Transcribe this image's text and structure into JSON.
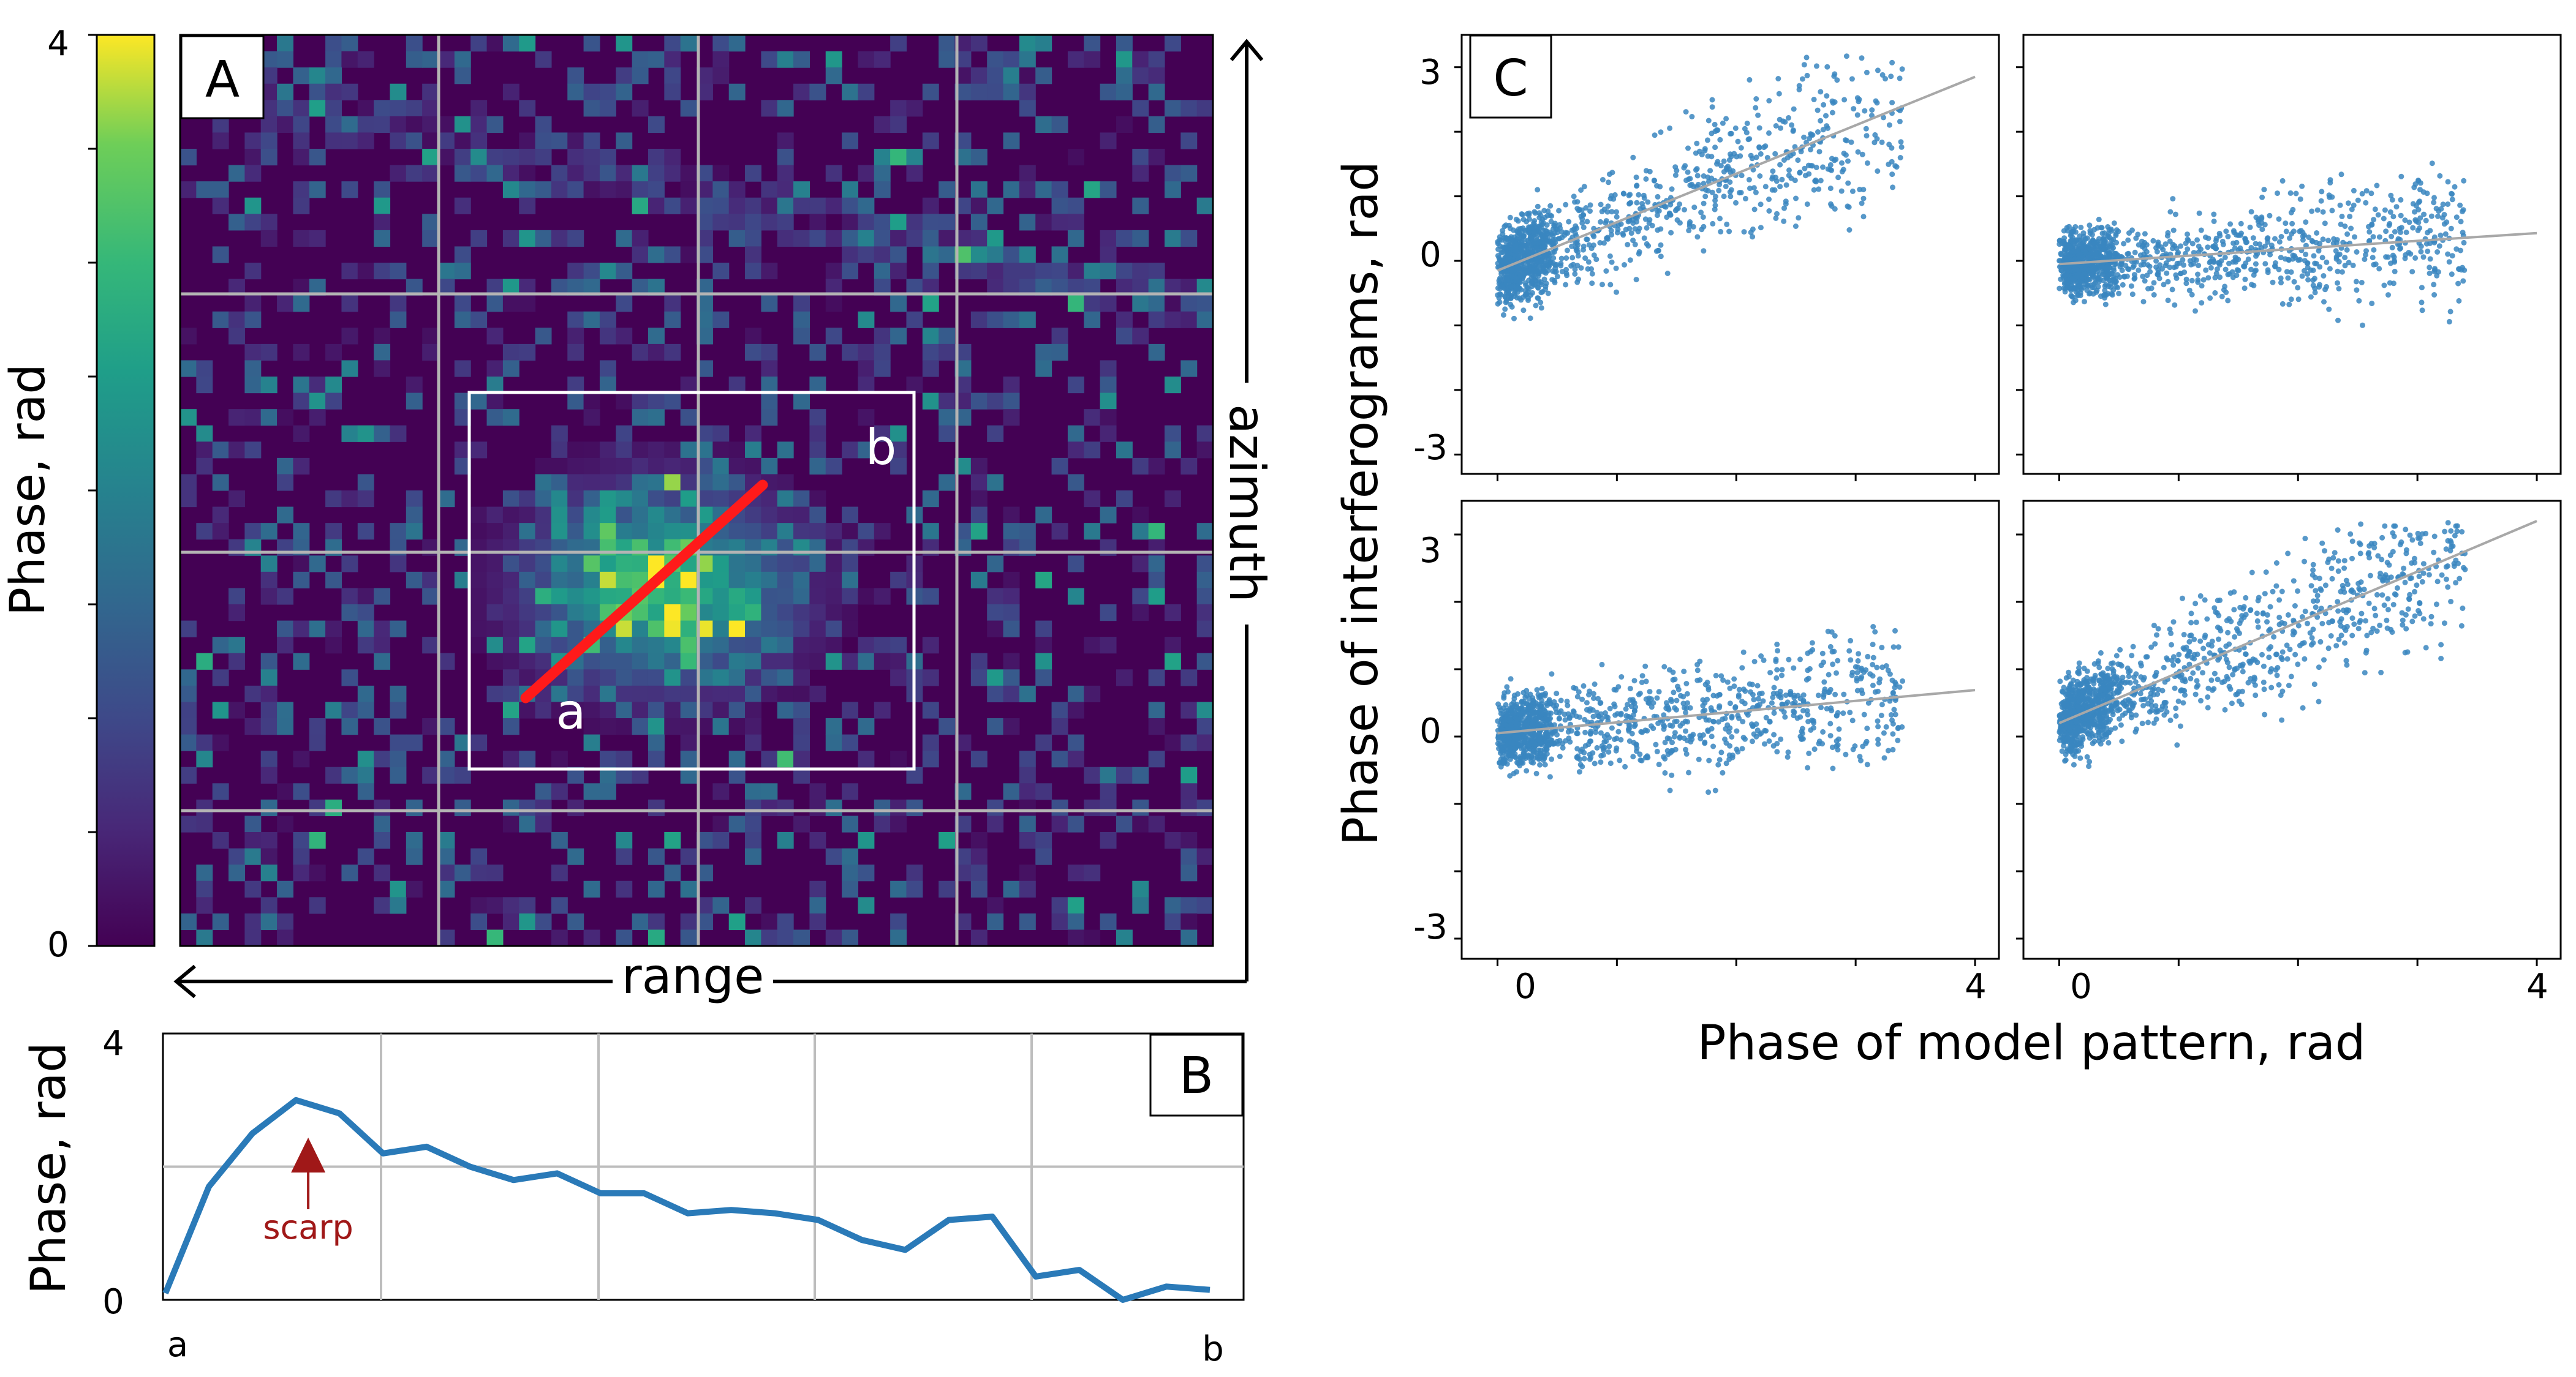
{
  "colors": {
    "scatter_point": "#3a86c0",
    "fit_line": "#a8a8a8",
    "profile_line": "#2a7ab8",
    "transect": "#ff1a1a",
    "scarp_marker": "#a01818",
    "grid_light": "#bdbdbd",
    "heatmap_grid": "#b4b4b4",
    "axis": "#000000"
  },
  "panel_a": {
    "letter": "A",
    "colorbar": {
      "label": "Phase, rad",
      "min_label": "0",
      "max_label": "4",
      "ticks": [
        0,
        0.5,
        1,
        1.5,
        2,
        2.5,
        3,
        3.5,
        4
      ]
    },
    "x_axis_label": "range",
    "y_axis_label": "azimuth",
    "transect_start_label": "a",
    "transect_end_label": "b"
  },
  "panel_b": {
    "letter": "B",
    "y_axis_label": "Phase, rad",
    "y_tick_labels": [
      "0",
      "4"
    ],
    "x_start_label": "a",
    "x_end_label": "b",
    "annotation": "scarp"
  },
  "panel_c": {
    "letter": "C",
    "y_axis_label": "Phase of interferograms, rad",
    "x_axis_label": "Phase of model pattern, rad",
    "y_tick_labels": [
      "3",
      "0",
      "-3"
    ],
    "x_tick_labels": [
      "0",
      "4"
    ]
  },
  "chart_data": [
    {
      "type": "heatmap",
      "panel": "A",
      "colorbar_label": "Phase, rad",
      "zlim": [
        0,
        4
      ],
      "colormap": "viridis",
      "xlabel": "range",
      "ylabel": "azimuth",
      "grid": true,
      "cols": 64,
      "rows": 56,
      "region_box_present": true,
      "transect": {
        "from": "a",
        "to": "b"
      }
    },
    {
      "type": "line",
      "panel": "B",
      "ylabel": "Phase, rad",
      "ylim": [
        0,
        4
      ],
      "x_start": "a",
      "x_end": "b",
      "grid": true,
      "x": [
        0,
        1,
        2,
        3,
        4,
        5,
        6,
        7,
        8,
        9,
        10,
        11,
        12,
        13,
        14,
        15,
        16,
        17,
        18,
        19,
        20,
        21,
        22,
        23,
        24
      ],
      "values": [
        0.1,
        1.7,
        2.5,
        3.0,
        2.8,
        2.2,
        2.3,
        2.0,
        1.8,
        1.9,
        1.6,
        1.6,
        1.3,
        1.35,
        1.3,
        1.2,
        0.9,
        0.75,
        1.2,
        1.25,
        0.35,
        0.45,
        0.0,
        0.2,
        0.15
      ],
      "annotations": [
        {
          "text": "scarp",
          "x": 3
        }
      ]
    },
    {
      "type": "scatter",
      "panel": "C",
      "xlabel": "Phase of model pattern, rad",
      "ylabel": "Phase of interferograms, rad",
      "xlim": [
        -0.3,
        4.2
      ],
      "ylim": [
        -3.3,
        3.5
      ],
      "subplots": [
        {
          "position": "top-left",
          "fit": {
            "intercept": -0.15,
            "slope": 0.75
          },
          "spread": 0.75,
          "skew_x": 1.3,
          "n": 1300,
          "seed": 11
        },
        {
          "position": "top-right",
          "fit": {
            "intercept": -0.05,
            "slope": 0.12
          },
          "spread": 0.55,
          "skew_x": 1.1,
          "n": 1300,
          "seed": 23
        },
        {
          "position": "bottom-left",
          "fit": {
            "intercept": 0.05,
            "slope": 0.16
          },
          "spread": 0.6,
          "skew_x": 1.2,
          "n": 1300,
          "seed": 37
        },
        {
          "position": "bottom-right",
          "fit": {
            "intercept": 0.2,
            "slope": 0.75
          },
          "spread": 0.7,
          "skew_x": 1.2,
          "n": 1300,
          "seed": 53
        }
      ]
    }
  ]
}
